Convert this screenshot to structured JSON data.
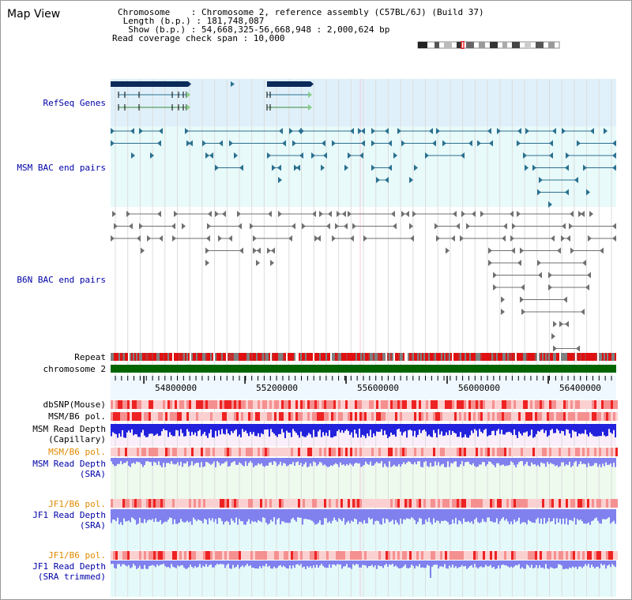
{
  "page": {
    "title": "Map View"
  },
  "info": {
    "chromosome_line": "Chromosome    : Chromosome 2, reference assembly (C57BL/6J) (Build 37)",
    "length_line": " Length (b.p.) : 181,748,087",
    "show_line": "  Show (b.p.) : 54,668,325-56,668,948 : 2,000,624 bp",
    "coverage_line": "Read coverage check span : 10,000"
  },
  "tracks": {
    "refseq_label": "RefSeq Genes",
    "msm_bac_label": "MSM BAC end pairs",
    "b6n_bac_label": "B6N BAC end pairs",
    "repeat_label": "Repeat",
    "chromosome_label": "chromosome 2",
    "dbsnp_label": "dbSNP(Mouse)",
    "msm_b6_pol_label": "MSM/B6 pol.",
    "msm_depth_cap_label_1": "MSM Read Depth",
    "msm_depth_cap_label_2": "(Capillary)",
    "msm_b6_pol_label_2": "MSM/B6 pol.",
    "msm_depth_sra_label_1": "MSM Read Depth",
    "msm_depth_sra_label_2": "(SRA)",
    "jf1_b6_pol_label": "JF1/B6 pol.",
    "jf1_depth_sra_label_1": "JF1 Read Depth",
    "jf1_depth_sra_label_2": "(SRA)",
    "jf1_b6_pol_label_2": "JF1/B6 pol.",
    "jf1_depth_trim_label_1": "JF1 Read Depth",
    "jf1_depth_trim_label_2": "(SRA trimmed)"
  },
  "ruler": {
    "ticks": [
      "54800000",
      "55200000",
      "55600000",
      "56000000",
      "56400000"
    ],
    "tick_values": [
      54800000,
      55200000,
      55600000,
      56000000,
      56400000
    ],
    "range": [
      54668325,
      56668948
    ]
  },
  "colors": {
    "refseq_bg": "#dff0fa",
    "bac_bg": "#e8fafa",
    "b6n_bg": "#ffffff",
    "msm_feature": "#2a7090",
    "b6n_feature": "#707070",
    "gene_dark": "#0a2a5a",
    "gene_line": "#3a8a3a",
    "chromosome": "#006400",
    "snp_red": "#ee3333",
    "depth_blue": "#2222dd",
    "depth_light": "#8080ee"
  }
}
